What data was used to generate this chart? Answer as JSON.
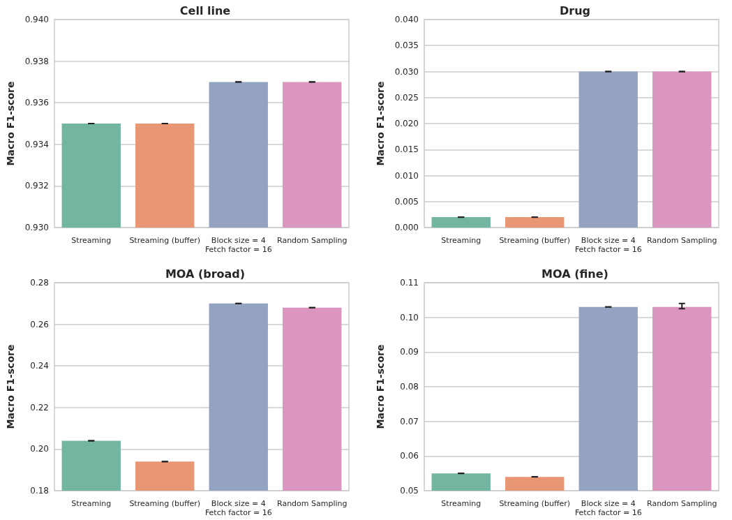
{
  "chart_data": [
    {
      "type": "bar",
      "title": "Cell line",
      "ylabel": "Macro F1-score",
      "categories": [
        "Streaming",
        "Streaming (buffer)",
        "Block size = 4\nFetch factor = 16",
        "Random Sampling"
      ],
      "values": [
        0.935,
        0.935,
        0.937,
        0.937
      ],
      "colors": [
        "#72b6a1",
        "#e99675",
        "#95a3c3",
        "#db96c0"
      ],
      "errors": [
        0,
        0,
        0,
        0
      ],
      "ylim": [
        0.93,
        0.94
      ],
      "yticks": [
        {
          "value": 0.93,
          "label": "0.930"
        },
        {
          "value": 0.932,
          "label": "0.932"
        },
        {
          "value": 0.934,
          "label": "0.934"
        },
        {
          "value": 0.936,
          "label": "0.936"
        },
        {
          "value": 0.938,
          "label": "0.938"
        },
        {
          "value": 0.94,
          "label": "0.940"
        }
      ],
      "grid": "y"
    },
    {
      "type": "bar",
      "title": "Drug",
      "ylabel": "Macro F1-score",
      "categories": [
        "Streaming",
        "Streaming (buffer)",
        "Block size = 4\nFetch factor = 16",
        "Random Sampling"
      ],
      "values": [
        0.002,
        0.002,
        0.03,
        0.03
      ],
      "colors": [
        "#72b6a1",
        "#e99675",
        "#95a3c3",
        "#db96c0"
      ],
      "errors": [
        0,
        0,
        0,
        0
      ],
      "ylim": [
        0,
        0.04
      ],
      "yticks": [
        {
          "value": 0,
          "label": "0.000"
        },
        {
          "value": 0.005,
          "label": "0.005"
        },
        {
          "value": 0.01,
          "label": "0.010"
        },
        {
          "value": 0.015,
          "label": "0.015"
        },
        {
          "value": 0.02,
          "label": "0.020"
        },
        {
          "value": 0.025,
          "label": "0.025"
        },
        {
          "value": 0.03,
          "label": "0.030"
        },
        {
          "value": 0.035,
          "label": "0.035"
        },
        {
          "value": 0.04,
          "label": "0.040"
        }
      ],
      "grid": "y"
    },
    {
      "type": "bar",
      "title": "MOA (broad)",
      "ylabel": "Macro F1-score",
      "categories": [
        "Streaming",
        "Streaming (buffer)",
        "Block size = 4\nFetch factor = 16",
        "Random Sampling"
      ],
      "values": [
        0.204,
        0.194,
        0.27,
        0.268
      ],
      "colors": [
        "#72b6a1",
        "#e99675",
        "#95a3c3",
        "#db96c0"
      ],
      "errors": [
        0,
        0,
        0,
        0
      ],
      "ylim": [
        0.18,
        0.28
      ],
      "yticks": [
        0.18,
        {
          "value": 0.2,
          "label": "0.20"
        },
        0.22,
        0.24,
        0.26,
        0.28
      ],
      "grid": "y"
    },
    {
      "type": "bar",
      "title": "MOA (fine)",
      "ylabel": "Macro F1-score",
      "categories": [
        "Streaming",
        "Streaming (buffer)",
        "Block size = 4\nFetch factor = 16",
        "Random Sampling"
      ],
      "values": [
        0.055,
        0.054,
        0.103,
        0.103
      ],
      "colors": [
        "#72b6a1",
        "#e99675",
        "#95a3c3",
        "#db96c0"
      ],
      "errors": [
        0,
        0,
        0,
        [
          0.1025,
          0.104
        ]
      ],
      "ylim": [
        0.05,
        0.11
      ],
      "yticks": [
        0.05,
        0.06,
        0.07,
        0.08,
        0.09,
        {
          "value": 0.1,
          "label": "0.10"
        },
        0.11
      ],
      "grid": "y"
    }
  ]
}
